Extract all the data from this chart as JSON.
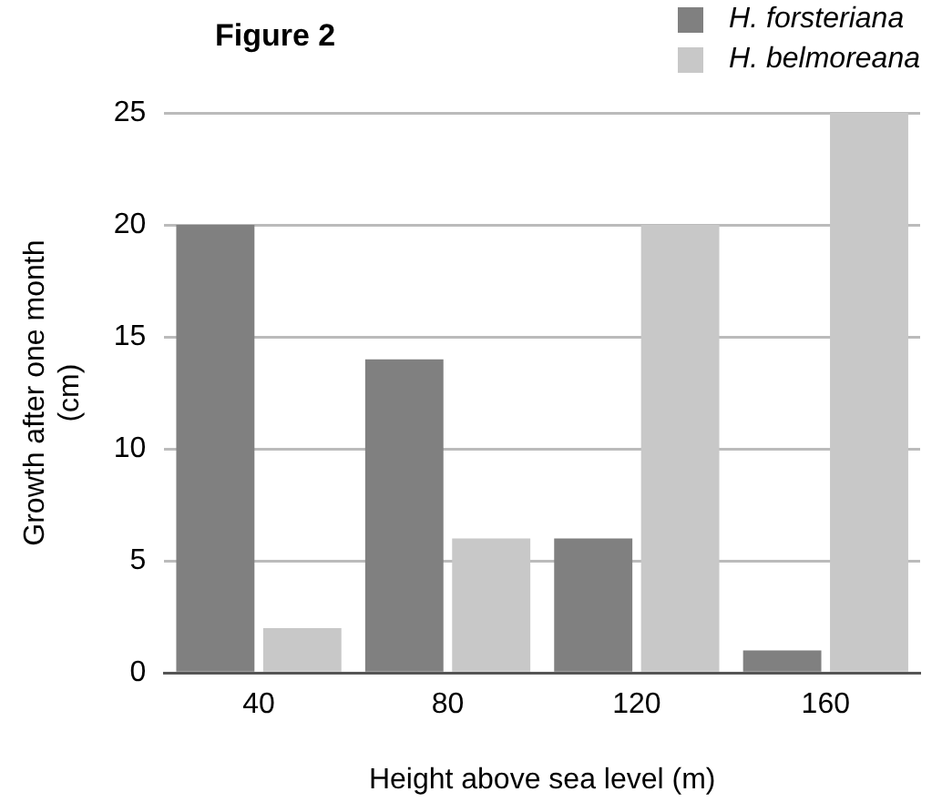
{
  "chart_data": {
    "type": "bar",
    "title": "Figure 2",
    "xlabel": "Height above sea level (m)",
    "ylabel": "Growth after one month (cm)",
    "categories": [
      "40",
      "80",
      "120",
      "160"
    ],
    "series": [
      {
        "name": "H. forsteriana",
        "color": "#808080",
        "values": [
          20,
          14,
          6,
          1
        ]
      },
      {
        "name": "H. belmoreana",
        "color": "#c8c8c8",
        "values": [
          2,
          6,
          20,
          25
        ]
      }
    ],
    "ylim": [
      0,
      25
    ],
    "yticks": [
      0,
      5,
      10,
      15,
      20,
      25
    ],
    "grid": "y",
    "legend": "top right"
  }
}
